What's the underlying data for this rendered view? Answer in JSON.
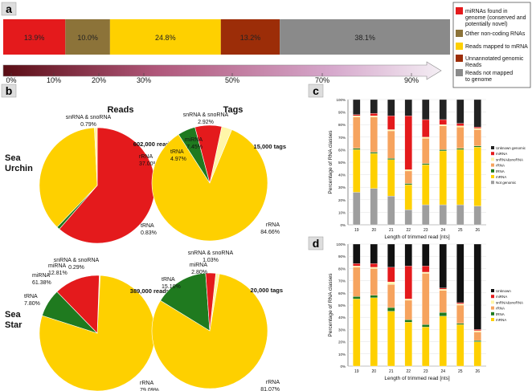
{
  "panel_labels": {
    "a": "a",
    "b": "b",
    "c": "c",
    "d": "d"
  },
  "colors": {
    "red": "#e41a1c",
    "brown": "#8c7339",
    "yellow": "#fed000",
    "darkred": "#9c2d08",
    "grey": "#8a8a8a",
    "green": "#1f7a1f",
    "cream": "#fff6a8",
    "orange": "#f6a35e",
    "black": "#222222",
    "lightgrey": "#9e9e9e"
  },
  "chart_data": [
    {
      "id": "a",
      "type": "bar",
      "orientation": "horizontal-stacked",
      "categories": [
        "miRNAs found in genome (conserved and potentially novel)",
        "Other non-coding RNAs",
        "Reads mapped to mRNA",
        "Unannotated genomic Reads",
        "Reads not mapped to genome"
      ],
      "values": [
        13.9,
        10.0,
        24.8,
        13.2,
        38.1
      ],
      "value_labels": [
        "13.9%",
        "10.0%",
        "24.8%",
        "13.2%",
        "38.1%"
      ],
      "legend": [
        {
          "label": "miRNAs found in\ngenome (conserved and\npotentially novel)",
          "color": "#e41a1c"
        },
        {
          "label": "Other non-coding RNAs",
          "color": "#8c7339"
        },
        {
          "label": "Reads mapped to mRNA",
          "color": "#fed000"
        },
        {
          "label": "Unnannotated genomic\nReads",
          "color": "#9c2d08"
        },
        {
          "label": "Reads not mapped\nto genome",
          "color": "#8a8a8a"
        }
      ],
      "scale_ticks": [
        "0%",
        "10%",
        "20%",
        "30%",
        "50%",
        "70%",
        "90%"
      ]
    },
    {
      "id": "b",
      "type": "pie",
      "column_titles": [
        "Reads",
        "Tags"
      ],
      "row_titles": [
        "Sea\nUrchin",
        "Sea\nStar"
      ],
      "pies": [
        {
          "row": 0,
          "col": 0,
          "total": "602,000 reads",
          "slices": [
            {
              "label": "miRNA",
              "value": 61.38,
              "text": "61.38%",
              "color": "#e41a1c"
            },
            {
              "label": "tRNA",
              "value": 0.83,
              "text": "0.83%",
              "color": "#1f7a1f"
            },
            {
              "label": "rRNA",
              "value": 37.0,
              "text": "37.00%",
              "color": "#fed000"
            },
            {
              "label": "snRNA & snoRNA",
              "value": 0.79,
              "text": "0.79%",
              "color": "#fff6a8"
            }
          ]
        },
        {
          "row": 0,
          "col": 1,
          "total": "15,000 tags",
          "slices": [
            {
              "label": "snRNA & snoRNA",
              "value": 2.92,
              "text": "2.92%",
              "color": "#fff6a8"
            },
            {
              "label": "rRNA",
              "value": 84.66,
              "text": "84.66%",
              "color": "#fed000"
            },
            {
              "label": "tRNA",
              "value": 4.97,
              "text": "4.97%",
              "color": "#1f7a1f"
            },
            {
              "label": "miRNA",
              "value": 7.45,
              "text": "7.45%",
              "color": "#e41a1c"
            }
          ]
        },
        {
          "row": 1,
          "col": 0,
          "total": "389,000 reads",
          "slices": [
            {
              "label": "snRNA & snoRNA",
              "value": 0.29,
              "text": "0.29%",
              "color": "#fff6a8"
            },
            {
              "label": "rRNA",
              "value": 79.09,
              "text": "79.09%",
              "color": "#fed000"
            },
            {
              "label": "tRNA",
              "value": 7.8,
              "text": "7.80%",
              "color": "#1f7a1f"
            },
            {
              "label": "miRNA",
              "value": 12.81,
              "text": "12.81%",
              "color": "#e41a1c"
            }
          ]
        },
        {
          "row": 1,
          "col": 1,
          "total": "20,000 tags",
          "slices": [
            {
              "label": "snRNA & snoRNA",
              "value": 1.03,
              "text": "1.03%",
              "color": "#fff6a8"
            },
            {
              "label": "rRNA",
              "value": 81.07,
              "text": "81.07%",
              "color": "#fed000"
            },
            {
              "label": "tRNA",
              "value": 15.1,
              "text": "15.10%",
              "color": "#1f7a1f"
            },
            {
              "label": "miRNA",
              "value": 2.8,
              "text": "2.80%",
              "color": "#e41a1c"
            }
          ]
        }
      ]
    },
    {
      "id": "c",
      "type": "bar",
      "orientation": "vertical-stacked",
      "xlabel": "Length of trimmed read [nts]",
      "ylabel": "Percentage of RNA classes",
      "ylim": [
        0,
        100
      ],
      "y_ticks": [
        "0%",
        "10%",
        "20%",
        "30%",
        "40%",
        "50%",
        "60%",
        "70%",
        "80%",
        "90%",
        "100%"
      ],
      "categories": [
        "19",
        "20",
        "21",
        "22",
        "23",
        "24",
        "25",
        "26"
      ],
      "series": [
        {
          "name": "Not genomic",
          "color": "#9e9e9e",
          "values": [
            26,
            29,
            23,
            12,
            16,
            16,
            16,
            15
          ]
        },
        {
          "name": "mRNA",
          "color": "#fed000",
          "values": [
            34,
            28,
            29,
            20,
            32,
            43,
            44,
            47
          ]
        },
        {
          "name": "tRNA",
          "color": "#1f7a1f",
          "values": [
            1,
            1,
            1,
            1,
            1,
            1,
            1,
            1
          ]
        },
        {
          "name": "rRNA",
          "color": "#f6a35e",
          "values": [
            25,
            28,
            22,
            10,
            20,
            19,
            17,
            13
          ]
        },
        {
          "name": "snRNA&snoRNA",
          "color": "#fff6a8",
          "values": [
            1,
            1,
            1,
            1,
            1,
            1,
            1,
            1
          ]
        },
        {
          "name": "miRNA",
          "color": "#e41a1c",
          "values": [
            1,
            2,
            11,
            43,
            14,
            4,
            2,
            1
          ]
        },
        {
          "name": "Unknown genomic",
          "color": "#222222",
          "values": [
            12,
            11,
            13,
            13,
            16,
            16,
            19,
            22
          ]
        }
      ]
    },
    {
      "id": "d",
      "type": "bar",
      "orientation": "vertical-stacked",
      "xlabel": "Length of trimmed read [nts]",
      "ylabel": "Percentage of RNA classes",
      "ylim": [
        0,
        100
      ],
      "y_ticks": [
        "0%",
        "10%",
        "20%",
        "30%",
        "40%",
        "50%",
        "60%",
        "70%",
        "80%",
        "90%",
        "100%"
      ],
      "categories": [
        "19",
        "20",
        "21",
        "22",
        "23",
        "24",
        "25",
        "26"
      ],
      "series": [
        {
          "name": "mRNA",
          "color": "#fed000",
          "values": [
            55,
            56,
            45,
            36,
            32,
            41,
            34,
            20
          ]
        },
        {
          "name": "tRNA",
          "color": "#1f7a1f",
          "values": [
            2,
            2,
            3,
            2,
            2,
            3,
            1,
            1
          ]
        },
        {
          "name": "rRNA",
          "color": "#f6a35e",
          "values": [
            24,
            22,
            19,
            16,
            42,
            18,
            15,
            7
          ]
        },
        {
          "name": "snRNA&snoRNA",
          "color": "#fff6a8",
          "values": [
            1,
            1,
            2,
            1,
            1,
            1,
            1,
            1
          ]
        },
        {
          "name": "miRNA",
          "color": "#e41a1c",
          "values": [
            2,
            3,
            12,
            27,
            5,
            1,
            1,
            1
          ]
        },
        {
          "name": "Unknown",
          "color": "#111111",
          "values": [
            16,
            16,
            19,
            18,
            18,
            36,
            48,
            70
          ]
        }
      ]
    }
  ]
}
